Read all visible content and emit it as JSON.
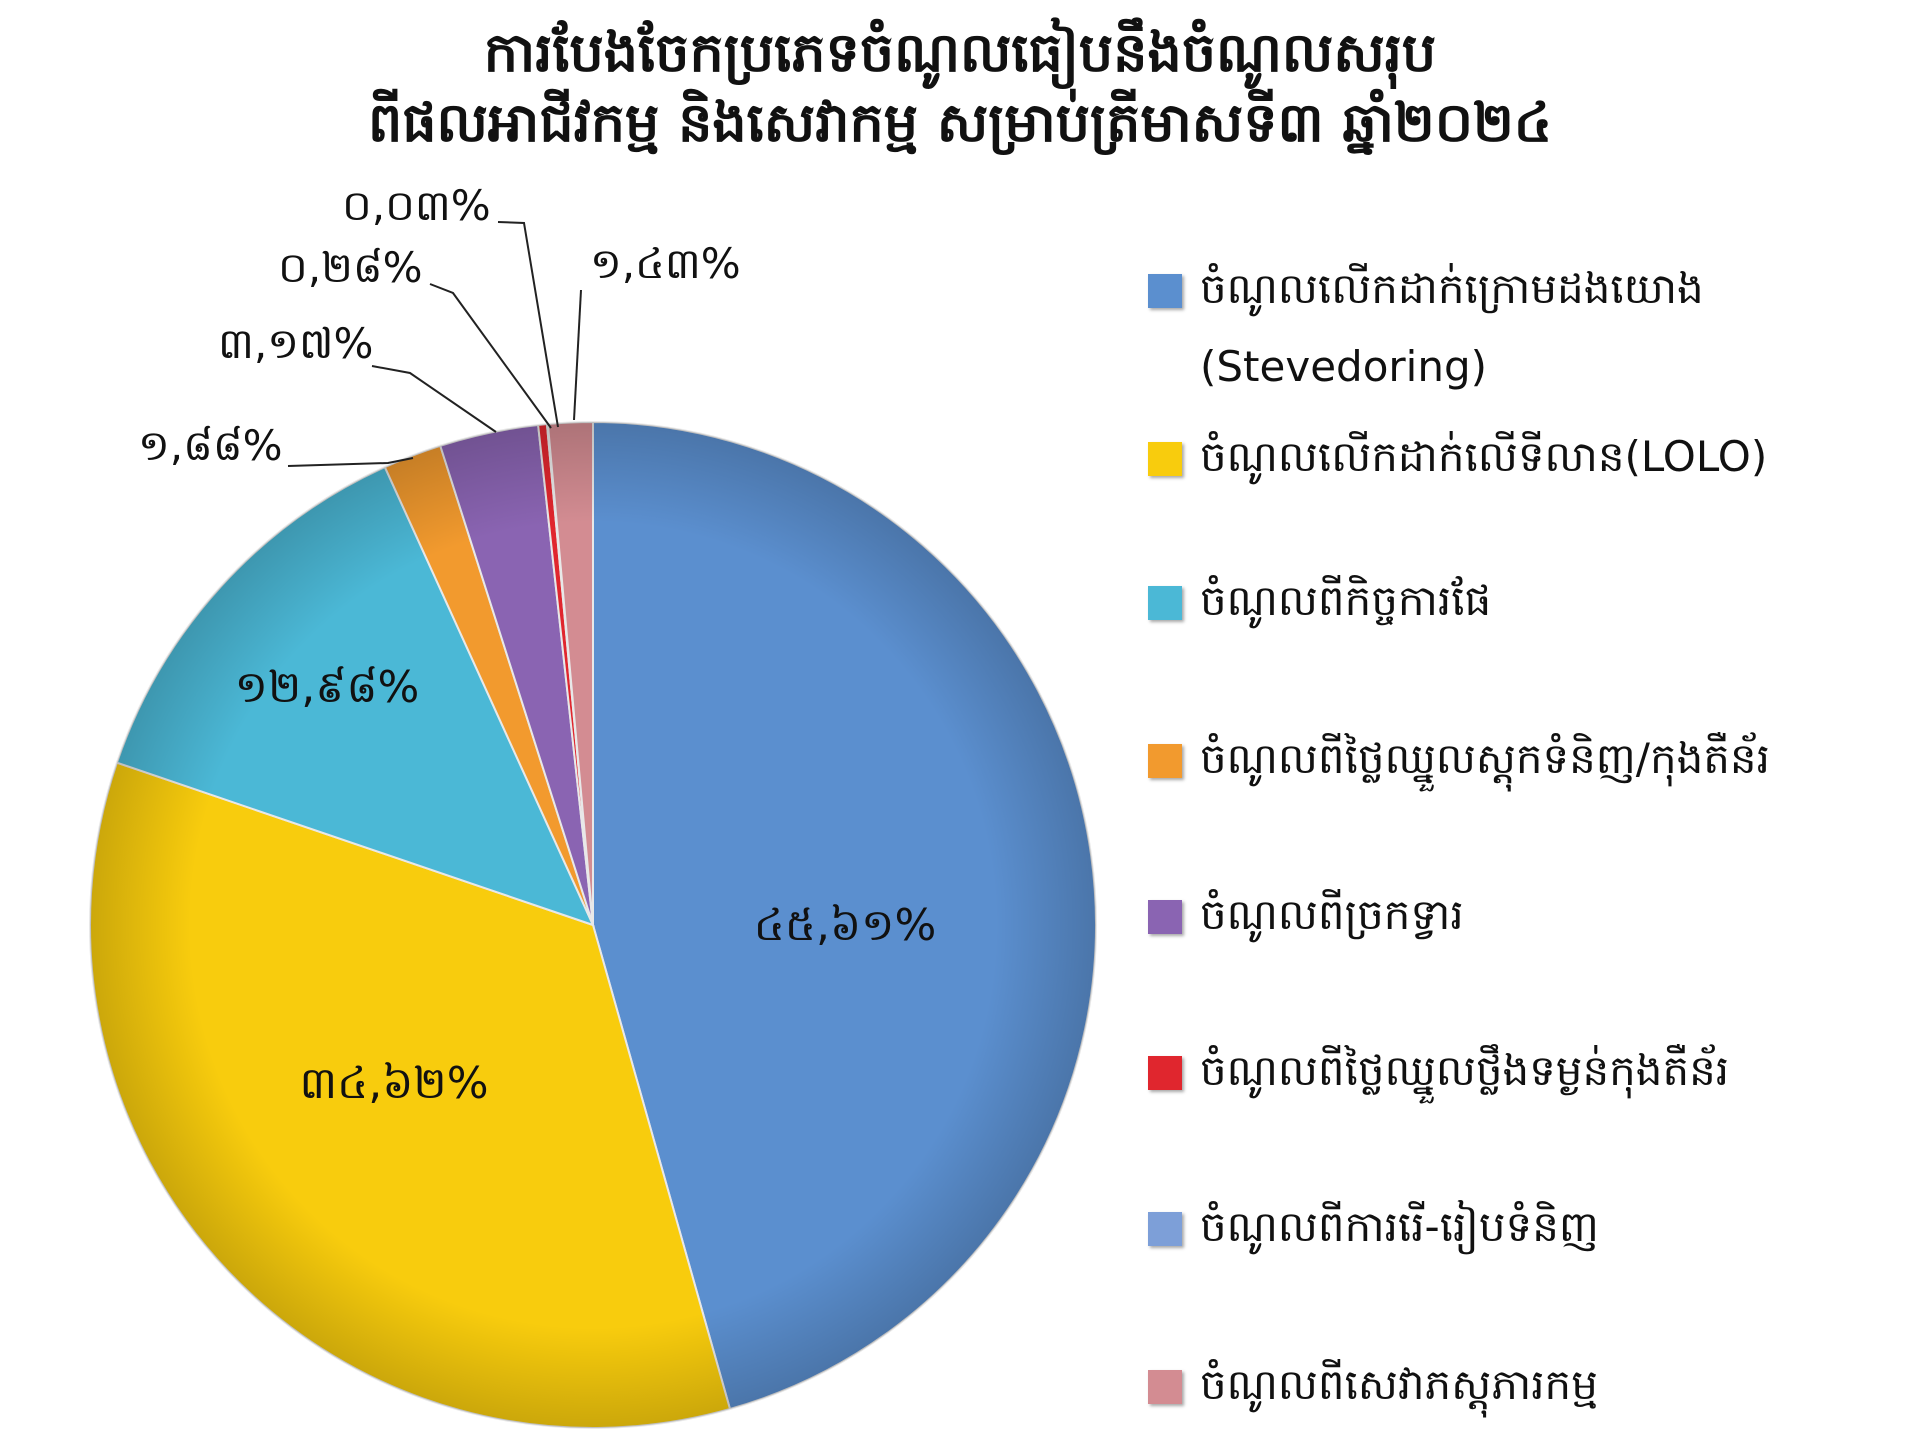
{
  "chart_data": {
    "type": "pie",
    "title": [
      "ការបែងចែកប្រភេទចំណូលធៀបនឹងចំណូលសរុប",
      "ពីផលអាជីវកម្ម និងសេវាកម្ម សម្រាប់ត្រីមាសទី៣ ឆ្នាំ២០២៤"
    ],
    "slices": [
      {
        "name": "ចំណូលលើកដាក់ក្រោមដងយោង",
        "name2": "(Stevedoring)",
        "value": 45.61,
        "label": "៤៥,៦១%",
        "color": "#5b8fcf"
      },
      {
        "name": "ចំណូលលើកដាក់លើទីលាន(LOLO)",
        "value": 34.62,
        "label": "៣៤,៦២%",
        "color": "#f8cc0d"
      },
      {
        "name": "ចំណូលពីកិច្ចការផែ",
        "value": 12.98,
        "label": "១២,៩៨%",
        "color": "#4bb8d6"
      },
      {
        "name": "ចំណូលពីថ្លៃឈ្នួលស្តុកទំនិញ/កុងតឺន័រ",
        "value": 1.88,
        "label": "១,៨៨%",
        "color": "#f29a2e"
      },
      {
        "name": "ចំណូលពីច្រកទ្វារ",
        "value": 3.17,
        "label": "៣,១៧%",
        "color": "#8a64b2"
      },
      {
        "name": "ចំណូលពីថ្លៃឈ្នួលថ្លឹងទម្ងន់កុងតឺន័រ",
        "value": 0.28,
        "label": "០,២៨%",
        "color": "#e0262e"
      },
      {
        "name": "ចំណូលពីការរើ-រៀបទំនិញ",
        "value": 0.03,
        "label": "០,០៣%",
        "color": "#7d9fd8"
      },
      {
        "name": "ចំណូលពីសេវាភស្តុភារកម្ម",
        "value": 1.43,
        "label": "១,៤៣%",
        "color": "#d38c92"
      }
    ]
  }
}
